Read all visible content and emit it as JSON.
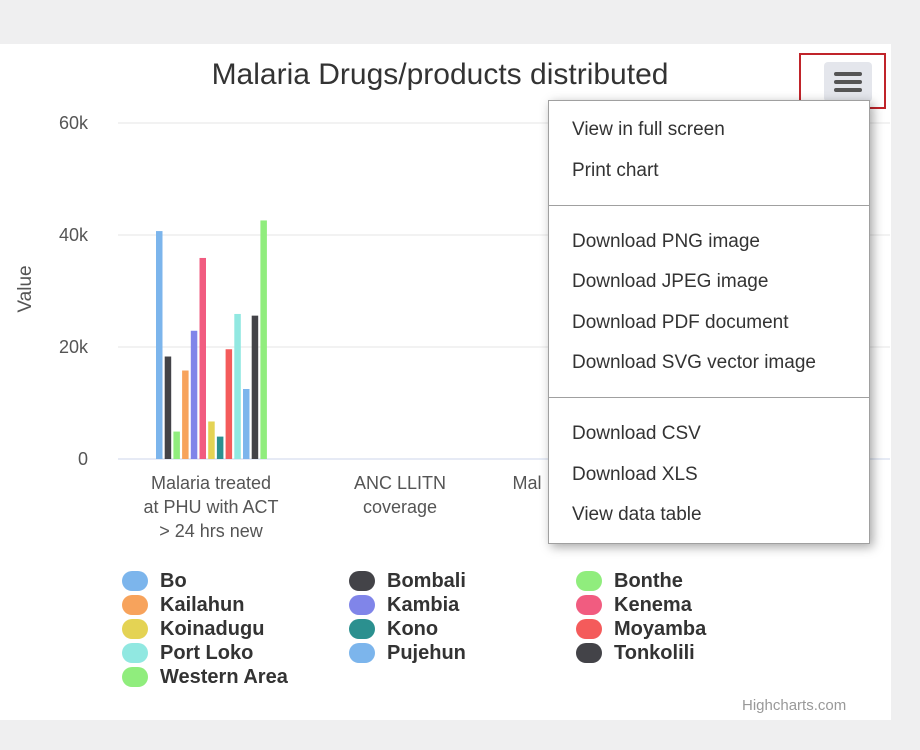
{
  "chart_data": {
    "type": "bar",
    "title": "Malaria Drugs/products distributed",
    "ylabel": "Value",
    "ylim": [
      0,
      60000
    ],
    "yticks": [
      "0",
      "20k",
      "40k",
      "60k"
    ],
    "categories": [
      "Malaria treated at PHU with ACT > 24 hrs new",
      "ANC LLITN coverage",
      "Mal"
    ],
    "series": [
      {
        "name": "Bo",
        "color": "#7cb5ec",
        "values": [
          40700,
          null,
          null
        ]
      },
      {
        "name": "Bombali",
        "color": "#434348",
        "values": [
          18300,
          null,
          null
        ]
      },
      {
        "name": "Bonthe",
        "color": "#90ed7d",
        "values": [
          4900,
          null,
          null
        ]
      },
      {
        "name": "Kailahun",
        "color": "#f7a35c",
        "values": [
          15800,
          null,
          null
        ]
      },
      {
        "name": "Kambia",
        "color": "#8085e9",
        "values": [
          22900,
          null,
          null
        ]
      },
      {
        "name": "Kenema",
        "color": "#f15c80",
        "values": [
          35900,
          null,
          null
        ]
      },
      {
        "name": "Koinadugu",
        "color": "#e4d354",
        "values": [
          6700,
          null,
          null
        ]
      },
      {
        "name": "Kono",
        "color": "#2b908f",
        "values": [
          4000,
          null,
          null
        ]
      },
      {
        "name": "Moyamba",
        "color": "#f45b5b",
        "values": [
          19600,
          null,
          null
        ]
      },
      {
        "name": "Port Loko",
        "color": "#91e8e1",
        "values": [
          25900,
          null,
          null
        ]
      },
      {
        "name": "Pujehun",
        "color": "#7cb5ec",
        "values": [
          12500,
          null,
          null
        ]
      },
      {
        "name": "Tonkolili",
        "color": "#434348",
        "values": [
          25600,
          null,
          null
        ]
      },
      {
        "name": "Western Area",
        "color": "#90ed7d",
        "values": [
          42600,
          null,
          null
        ]
      }
    ],
    "grid": true,
    "legend": "bottom"
  },
  "category_lines": [
    [
      "Malaria treated",
      "at PHU with ACT",
      "> 24 hrs new"
    ],
    [
      "ANC LLITN",
      "coverage"
    ],
    [
      "Mal"
    ]
  ],
  "menu": {
    "items": [
      "View in full screen",
      "Print chart",
      "Download PNG image",
      "Download JPEG image",
      "Download PDF document",
      "Download SVG vector image",
      "Download CSV",
      "Download XLS",
      "View data table"
    ]
  },
  "credits": "Highcharts.com",
  "menu_button_icon": "hamburger-icon"
}
